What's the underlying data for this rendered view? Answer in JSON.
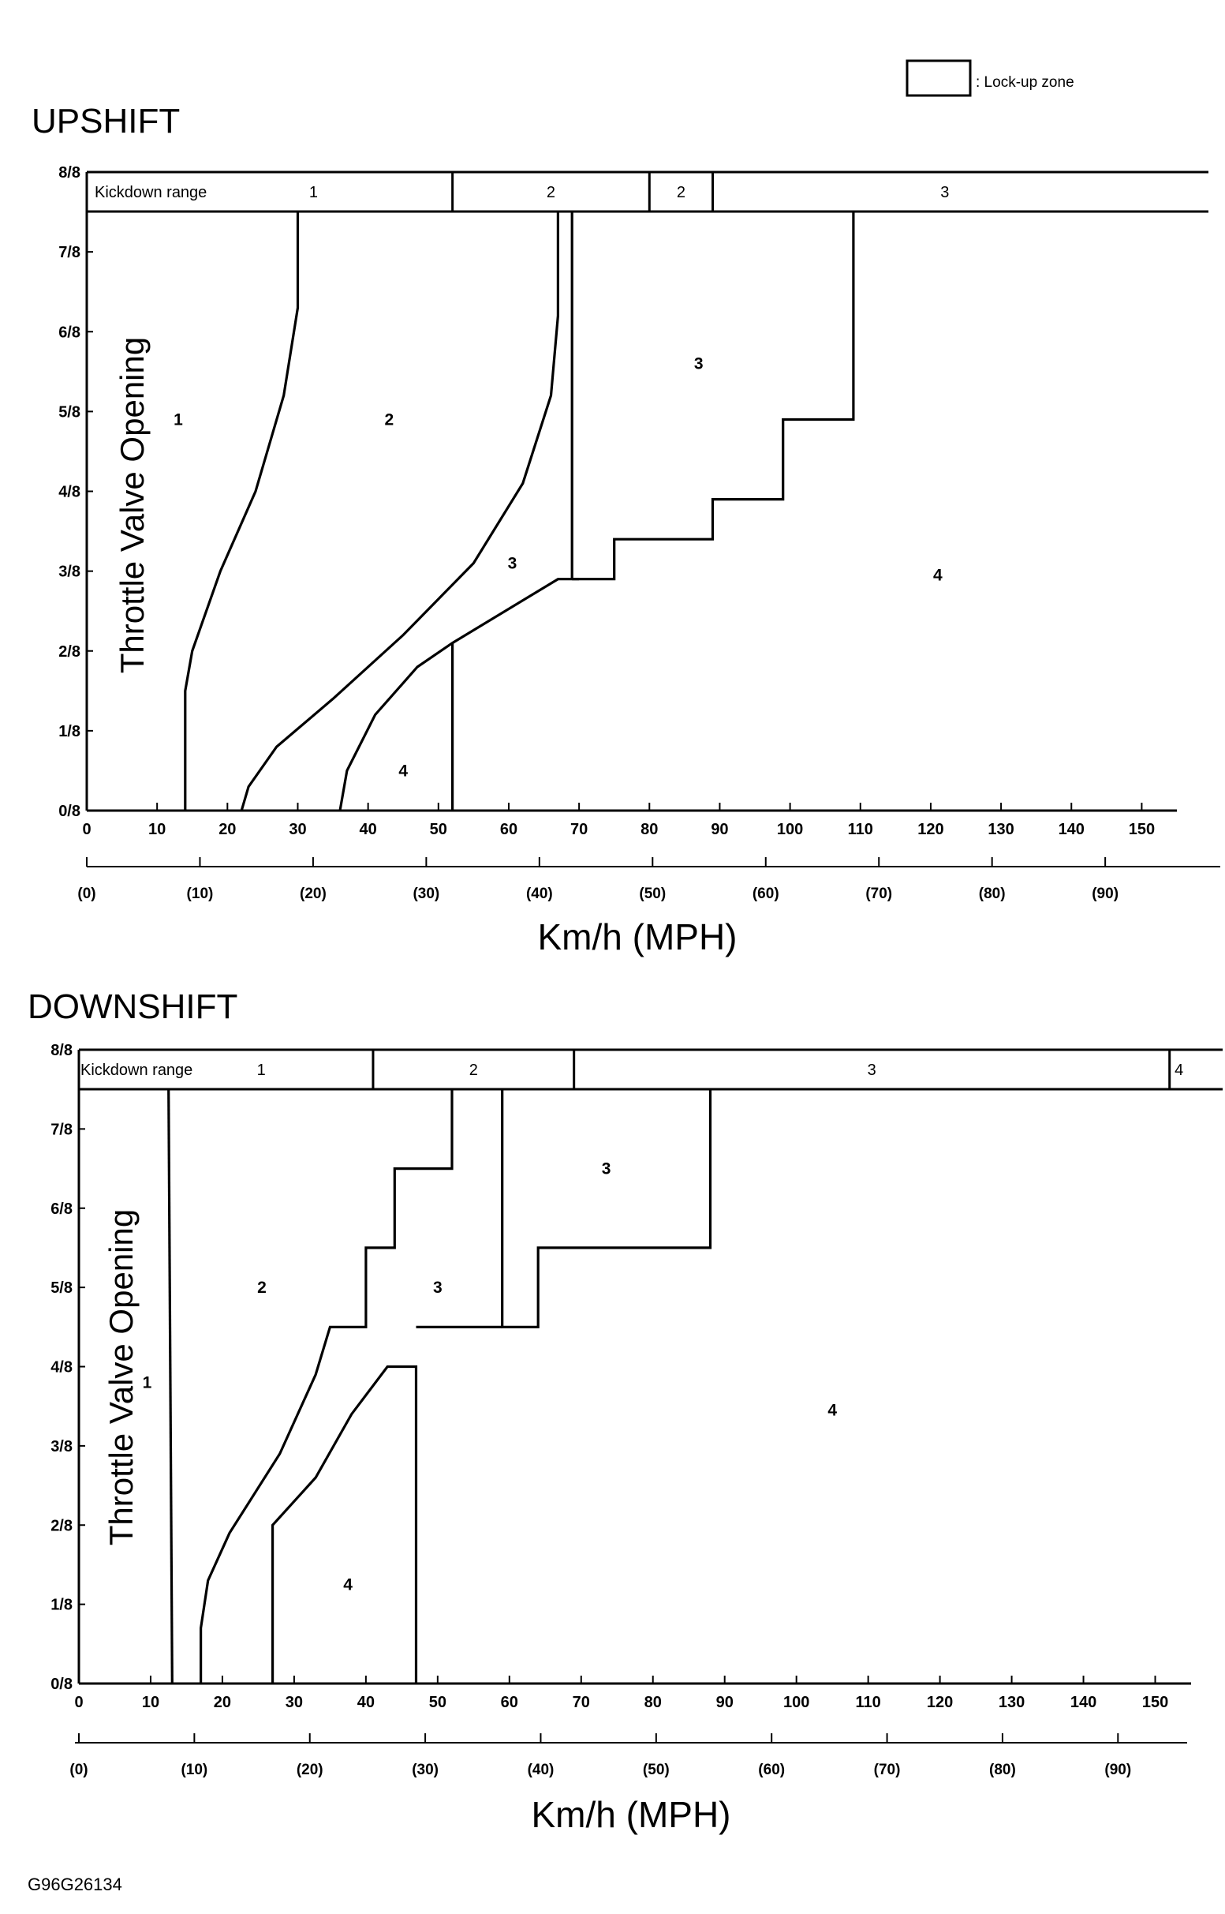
{
  "legend": {
    "label": ": Lock-up zone"
  },
  "figure_id": "G96G26134",
  "chart_data": [
    {
      "type": "line",
      "title": "UPSHIFT",
      "xlabel": "Km/h (MPH)",
      "ylabel": "Throttle Valve Opening",
      "xlim": [
        0,
        155
      ],
      "ylim": [
        0,
        8
      ],
      "x_ticks": [
        "0",
        "10",
        "20",
        "30",
        "40",
        "50",
        "60",
        "70",
        "80",
        "90",
        "100",
        "110",
        "120",
        "130",
        "140",
        "150"
      ],
      "mph_ticks": [
        "(0)",
        "(10)",
        "(20)",
        "(30)",
        "(40)",
        "(50)",
        "(60)",
        "(70)",
        "(80)",
        "(90)"
      ],
      "y_ticks": [
        "0/8",
        "1/8",
        "2/8",
        "3/8",
        "4/8",
        "5/8",
        "6/8",
        "7/8",
        "8/8"
      ],
      "kickdown": {
        "label": "Kickdown range",
        "segments": [
          {
            "label": "1",
            "from": 0,
            "to": 52
          },
          {
            "label": "2",
            "from": 52,
            "to": 80
          },
          {
            "label": "2",
            "from": 80,
            "to": 89
          },
          {
            "label": "3",
            "from": 89,
            "to": 155
          }
        ]
      },
      "series": [
        {
          "points": [
            [
              14,
              0
            ],
            [
              14,
              1.5
            ],
            [
              15,
              2
            ],
            [
              19,
              3
            ],
            [
              24,
              4
            ],
            [
              28,
              5.2
            ],
            [
              30,
              6.3
            ],
            [
              30,
              7.5
            ]
          ]
        },
        {
          "points": [
            [
              22,
              0
            ],
            [
              23,
              0.3
            ],
            [
              27,
              0.8
            ],
            [
              35,
              1.4
            ],
            [
              45,
              2.2
            ],
            [
              55,
              3.1
            ],
            [
              62,
              4.1
            ],
            [
              66,
              5.2
            ],
            [
              67,
              6.2
            ],
            [
              67,
              7.5
            ]
          ]
        },
        {
          "points": [
            [
              36,
              0
            ],
            [
              37,
              0.5
            ],
            [
              41,
              1.2
            ],
            [
              47,
              1.8
            ],
            [
              52,
              2.1
            ],
            [
              67,
              2.9
            ],
            [
              70,
              2.9
            ]
          ]
        },
        {
          "points": [
            [
              52,
              0
            ],
            [
              52,
              2.1
            ]
          ]
        },
        {
          "points": [
            [
              69,
              2.9
            ],
            [
              69,
              7.5
            ]
          ]
        },
        {
          "points": [
            [
              69,
              2.9
            ],
            [
              75,
              2.9
            ],
            [
              75,
              3.4
            ],
            [
              89,
              3.4
            ],
            [
              89,
              3.9
            ],
            [
              99,
              3.9
            ],
            [
              99,
              4.9
            ],
            [
              109,
              4.9
            ],
            [
              109,
              7.5
            ]
          ]
        }
      ],
      "zone_labels": [
        {
          "text": "1",
          "x": 13,
          "y": 4.9
        },
        {
          "text": "2",
          "x": 43,
          "y": 4.9
        },
        {
          "text": "3",
          "x": 60.5,
          "y": 3.1
        },
        {
          "text": "3",
          "x": 87,
          "y": 5.6
        },
        {
          "text": "4",
          "x": 45,
          "y": 0.5
        },
        {
          "text": "4",
          "x": 121,
          "y": 2.95
        }
      ]
    },
    {
      "type": "line",
      "title": "DOWNSHIFT",
      "xlabel": "Km/h (MPH)",
      "ylabel": "Throttle Valve Opening",
      "xlim": [
        0,
        155
      ],
      "ylim": [
        0,
        8
      ],
      "x_ticks": [
        "0",
        "10",
        "20",
        "30",
        "40",
        "50",
        "60",
        "70",
        "80",
        "90",
        "100",
        "110",
        "120",
        "130",
        "140",
        "150"
      ],
      "mph_ticks": [
        "(0)",
        "(10)",
        "(20)",
        "(30)",
        "(40)",
        "(50)",
        "(60)",
        "(70)",
        "(80)",
        "(90)"
      ],
      "y_ticks": [
        "0/8",
        "1/8",
        "2/8",
        "3/8",
        "4/8",
        "5/8",
        "6/8",
        "7/8",
        "8/8"
      ],
      "kickdown": {
        "label": "Kickdown range",
        "segments": [
          {
            "label": "1",
            "from": 0,
            "to": 41
          },
          {
            "label": "2",
            "from": 41,
            "to": 69
          },
          {
            "label": "3",
            "from": 69,
            "to": 152
          },
          {
            "label": "4",
            "from": 152,
            "to": 155
          }
        ]
      },
      "series": [
        {
          "points": [
            [
              13,
              0
            ],
            [
              12.5,
              7.5
            ]
          ]
        },
        {
          "points": [
            [
              17,
              0
            ],
            [
              17,
              0.7
            ],
            [
              18,
              1.3
            ],
            [
              21,
              1.9
            ],
            [
              28,
              2.9
            ],
            [
              33,
              3.9
            ],
            [
              35,
              4.5
            ],
            [
              40,
              4.5
            ],
            [
              40,
              5.5
            ],
            [
              44,
              5.5
            ],
            [
              44,
              6.5
            ],
            [
              52,
              6.5
            ],
            [
              52,
              7.5
            ]
          ]
        },
        {
          "points": [
            [
              27,
              0
            ],
            [
              27,
              2
            ],
            [
              33,
              2.6
            ],
            [
              38,
              3.4
            ],
            [
              43,
              4
            ],
            [
              47,
              4
            ],
            [
              47,
              0
            ]
          ]
        },
        {
          "points": [
            [
              47,
              4.5
            ],
            [
              59,
              4.5
            ]
          ]
        },
        {
          "points": [
            [
              59,
              7.5
            ],
            [
              59,
              4.5
            ],
            [
              64,
              4.5
            ],
            [
              64,
              5.5
            ],
            [
              88,
              5.5
            ],
            [
              88,
              7.5
            ]
          ]
        }
      ],
      "zone_labels": [
        {
          "text": "1",
          "x": 9.5,
          "y": 3.8
        },
        {
          "text": "2",
          "x": 25.5,
          "y": 5
        },
        {
          "text": "3",
          "x": 50,
          "y": 5
        },
        {
          "text": "3",
          "x": 73.5,
          "y": 6.5
        },
        {
          "text": "4",
          "x": 37.5,
          "y": 1.25
        },
        {
          "text": "4",
          "x": 105,
          "y": 3.45
        }
      ]
    }
  ]
}
